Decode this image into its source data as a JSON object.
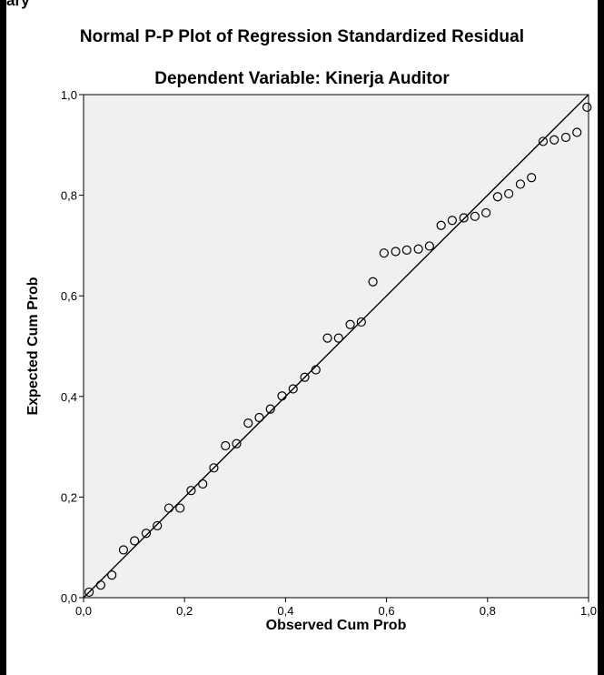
{
  "header": {
    "top_caption": "ary"
  },
  "chart_data": {
    "type": "scatter",
    "title": "Normal P-P Plot of Regression Standardized Residual",
    "subtitle": "Dependent Variable: Kinerja Auditor",
    "xlabel": "Observed Cum Prob",
    "ylabel": "Expected Cum Prob",
    "xlim": [
      0,
      1
    ],
    "ylim": [
      0,
      1
    ],
    "xticks": [
      "0,0",
      "0,2",
      "0,4",
      "0,6",
      "0,8",
      "1,0"
    ],
    "yticks": [
      "0,0",
      "0,2",
      "0,4",
      "0,6",
      "0,8",
      "1,0"
    ],
    "reference_line": [
      [
        0,
        0
      ],
      [
        1,
        1
      ]
    ],
    "grid": false,
    "colors": {
      "plot_background": "#f0f0f0",
      "marker": "#000000",
      "line": "#000000"
    },
    "points": [
      [
        0.011,
        0.011
      ],
      [
        0.034,
        0.025
      ],
      [
        0.056,
        0.045
      ],
      [
        0.079,
        0.095
      ],
      [
        0.101,
        0.113
      ],
      [
        0.124,
        0.128
      ],
      [
        0.146,
        0.143
      ],
      [
        0.169,
        0.178
      ],
      [
        0.191,
        0.178
      ],
      [
        0.213,
        0.213
      ],
      [
        0.236,
        0.226
      ],
      [
        0.258,
        0.258
      ],
      [
        0.281,
        0.302
      ],
      [
        0.303,
        0.306
      ],
      [
        0.326,
        0.347
      ],
      [
        0.348,
        0.358
      ],
      [
        0.37,
        0.375
      ],
      [
        0.393,
        0.401
      ],
      [
        0.415,
        0.415
      ],
      [
        0.438,
        0.438
      ],
      [
        0.46,
        0.453
      ],
      [
        0.483,
        0.516
      ],
      [
        0.505,
        0.516
      ],
      [
        0.528,
        0.543
      ],
      [
        0.55,
        0.548
      ],
      [
        0.573,
        0.628
      ],
      [
        0.595,
        0.685
      ],
      [
        0.618,
        0.688
      ],
      [
        0.64,
        0.691
      ],
      [
        0.663,
        0.693
      ],
      [
        0.685,
        0.699
      ],
      [
        0.708,
        0.74
      ],
      [
        0.73,
        0.75
      ],
      [
        0.753,
        0.755
      ],
      [
        0.775,
        0.758
      ],
      [
        0.797,
        0.765
      ],
      [
        0.82,
        0.797
      ],
      [
        0.842,
        0.803
      ],
      [
        0.865,
        0.822
      ],
      [
        0.887,
        0.835
      ],
      [
        0.91,
        0.907
      ],
      [
        0.932,
        0.91
      ],
      [
        0.955,
        0.915
      ],
      [
        0.977,
        0.925
      ],
      [
        0.997,
        0.975
      ]
    ]
  }
}
